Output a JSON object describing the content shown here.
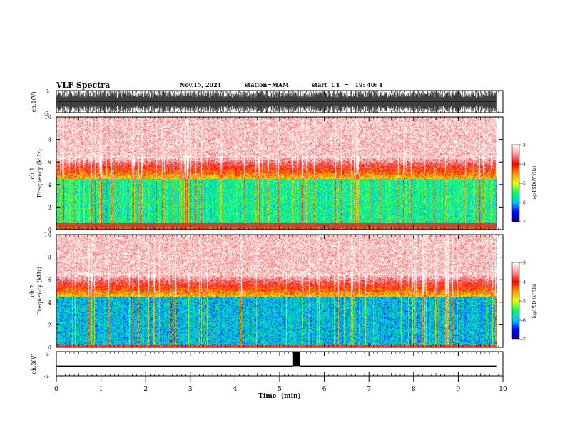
{
  "chart_data": {
    "type": "heatmap",
    "header": {
      "title": "VLF Spectra",
      "date": "Nov.15, 2021",
      "station": "station=MAM",
      "start_ut": "start  UT  =   19: 40: 1"
    },
    "x_axis": {
      "label": "Time  (min)",
      "range": [
        0,
        10
      ],
      "ticks": [
        "0",
        "1",
        "2",
        "3",
        "4",
        "5",
        "6",
        "7",
        "8",
        "9",
        "10"
      ],
      "data_end": 9.85
    },
    "panels": [
      {
        "id": "ch1-waveform",
        "kind": "waveform",
        "ylabel": "ch.1(V)",
        "ylim": [
          -5,
          5
        ],
        "yticks": [
          "5",
          "-5"
        ],
        "amplitude": 5
      },
      {
        "id": "ch1-spectrogram",
        "kind": "spectrogram",
        "ylabel_top": "ch.1",
        "ylabel": "Frequency  (kHz)",
        "ylim": [
          0,
          10
        ],
        "yticks": [
          "0",
          "2",
          "4",
          "6",
          "8",
          "10"
        ],
        "lower_band_value": -5.75,
        "hum_lines_khz": [
          0.3,
          0.5
        ],
        "colorbar": {
          "label": "log(PSD)(V²/Hz)",
          "range": [
            -7,
            -3
          ],
          "ticks": [
            "-3",
            "-4",
            "-5",
            "-6",
            "-7"
          ]
        }
      },
      {
        "id": "ch2-spectrogram",
        "kind": "spectrogram",
        "ylabel_top": "ch.2",
        "ylabel": "Frequency  (kHz)",
        "ylim": [
          0,
          10
        ],
        "yticks": [
          "0",
          "2",
          "4",
          "6",
          "8",
          "10"
        ],
        "lower_band_value": -6.1,
        "hum_lines_khz": [],
        "colorbar": {
          "label": "log(PSD)(V²/Hz)",
          "range": [
            -7,
            -3
          ],
          "ticks": [
            "-3",
            "-4",
            "-5",
            "-6",
            "-7"
          ]
        }
      },
      {
        "id": "ch3-waveform",
        "kind": "signal",
        "ylabel": "ch.3(V)",
        "ylim": [
          -5,
          5
        ],
        "yticks": [
          "5",
          "-5"
        ],
        "baseline_v": -1,
        "pulse": {
          "start_min": 5.3,
          "end_min": 5.45,
          "high_v": 5
        }
      }
    ],
    "colormap": [
      "#000088",
      "#0000ff",
      "#00c8ff",
      "#00ff66",
      "#e6ff00",
      "#ff9900",
      "#ff0000",
      "#ff9999",
      "#ffffff"
    ]
  }
}
